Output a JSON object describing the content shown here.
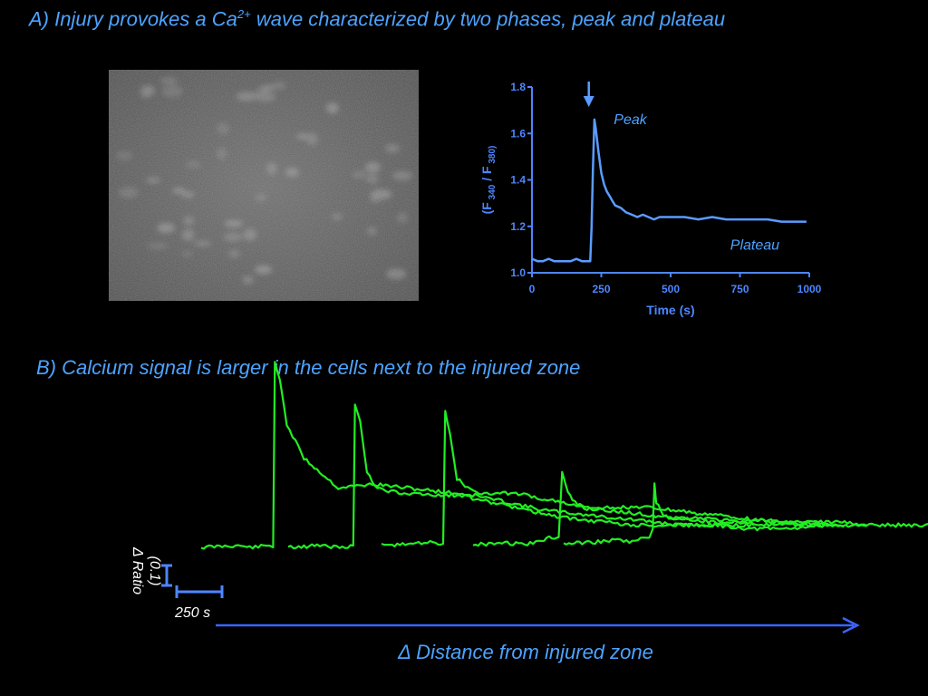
{
  "panel_a": {
    "title_prefix": "A) Injury provokes a Ca",
    "title_sup": "2+",
    "title_suffix": " wave characterized by two phases, peak and plateau"
  },
  "panel_b": {
    "title": "B) Calcium signal is larger in the cells next to the injured zone",
    "scale_y_label": "Δ Ratio",
    "scale_y_value": "(0.1)",
    "scale_x_label": "250 s",
    "distance_label": "Δ Distance from injured zone"
  },
  "colors": {
    "accent": "#4da3ff",
    "axis": "#4d86ff",
    "trace_a": "#5a9cff",
    "trace_b": "#22ee22"
  },
  "chart_data": [
    {
      "type": "line",
      "title": "",
      "xlabel": "Time (s)",
      "ylabel_main": "(F",
      "ylabel_sub1": "340",
      "ylabel_mid": " / F",
      "ylabel_sub2": "380)",
      "xlim": [
        0,
        1000
      ],
      "ylim": [
        1.0,
        1.8
      ],
      "xticks": [
        0,
        250,
        500,
        750,
        1000
      ],
      "xtick_labels": [
        "0",
        "250",
        "500",
        "750",
        "1000"
      ],
      "yticks": [
        1.0,
        1.2,
        1.4,
        1.6,
        1.8
      ],
      "ytick_labels": [
        "1.0",
        "1.2",
        "1.4",
        "1.6",
        "1.8"
      ],
      "injury_arrow_x": 205,
      "annotations": [
        {
          "text": "Peak",
          "x": 295,
          "y": 1.64
        },
        {
          "text": "Plateau",
          "x": 715,
          "y": 1.1
        }
      ],
      "series": [
        {
          "x": [
            0,
            20,
            40,
            60,
            80,
            100,
            120,
            140,
            160,
            180,
            200,
            210,
            215,
            220,
            225,
            230,
            240,
            250,
            260,
            270,
            280,
            290,
            300,
            320,
            340,
            360,
            380,
            400,
            420,
            440,
            460,
            480,
            500,
            550,
            600,
            650,
            700,
            750,
            800,
            850,
            900,
            950,
            990
          ],
          "y": [
            1.06,
            1.05,
            1.05,
            1.06,
            1.05,
            1.05,
            1.05,
            1.05,
            1.06,
            1.05,
            1.05,
            1.05,
            1.2,
            1.45,
            1.66,
            1.62,
            1.52,
            1.43,
            1.38,
            1.35,
            1.33,
            1.31,
            1.29,
            1.28,
            1.26,
            1.25,
            1.24,
            1.25,
            1.24,
            1.23,
            1.24,
            1.24,
            1.24,
            1.24,
            1.23,
            1.24,
            1.23,
            1.23,
            1.23,
            1.23,
            1.22,
            1.22,
            1.22
          ]
        }
      ]
    },
    {
      "type": "line",
      "title": "",
      "xlabel": "",
      "ylabel": "",
      "grid": false,
      "series": [
        {
          "x": [
            0,
            100,
            150,
            200,
            210,
            215,
            230,
            250,
            300,
            400,
            500,
            600,
            700,
            800,
            900,
            1000,
            1100,
            1200,
            1300,
            1400,
            1500,
            1600,
            1700,
            1820
          ],
          "y": [
            0,
            0.005,
            0,
            0.005,
            0,
            0.5,
            0.45,
            0.33,
            0.24,
            0.16,
            0.17,
            0.16,
            0.15,
            0.14,
            0.12,
            0.1,
            0.09,
            0.08,
            0.07,
            0.06,
            0.06,
            0.05,
            0.05,
            0.06
          ]
        },
        {
          "x": [
            0,
            100,
            150,
            190,
            195,
            210,
            230,
            260,
            300,
            400,
            500,
            600,
            700,
            800,
            900,
            1000,
            1100,
            1200,
            1300,
            1360
          ],
          "y": [
            0,
            0.005,
            0,
            0.005,
            0.38,
            0.34,
            0.2,
            0.16,
            0.15,
            0.14,
            0.14,
            0.12,
            0.1,
            0.08,
            0.07,
            0.06,
            0.06,
            0.06,
            0.06,
            0.06
          ]
        },
        {
          "x": [
            0,
            100,
            150,
            180,
            186,
            200,
            220,
            260,
            300,
            400,
            500,
            600,
            700,
            800,
            900,
            1000,
            1100,
            1200,
            1300,
            1350
          ],
          "y": [
            0,
            0.005,
            0.01,
            0.005,
            0.36,
            0.3,
            0.18,
            0.15,
            0.14,
            0.14,
            0.12,
            0.1,
            0.09,
            0.08,
            0.07,
            0.06,
            0.07,
            0.06,
            0.06,
            0.05
          ]
        },
        {
          "x": [
            0,
            100,
            150,
            200,
            230,
            250,
            260,
            270,
            290,
            320,
            350,
            400,
            500,
            600,
            700,
            800,
            900,
            1000,
            1100,
            1150
          ],
          "y": [
            0,
            0.005,
            0,
            0.01,
            0.02,
            0.02,
            0.2,
            0.16,
            0.12,
            0.1,
            0.1,
            0.1,
            0.1,
            0.09,
            0.08,
            0.07,
            0.06,
            0.06,
            0.06,
            0.05
          ]
        },
        {
          "x": [
            0,
            100,
            150,
            200,
            250,
            260,
            265,
            270,
            290,
            320,
            400,
            500,
            600,
            700,
            800,
            900,
            1000,
            1100,
            1150
          ],
          "y": [
            0,
            0.005,
            0.01,
            0.005,
            0.02,
            0.04,
            0.16,
            0.11,
            0.08,
            0.07,
            0.07,
            0.06,
            0.05,
            0.05,
            0.05,
            0.05,
            0.05,
            0.05,
            0.05
          ]
        }
      ]
    }
  ]
}
